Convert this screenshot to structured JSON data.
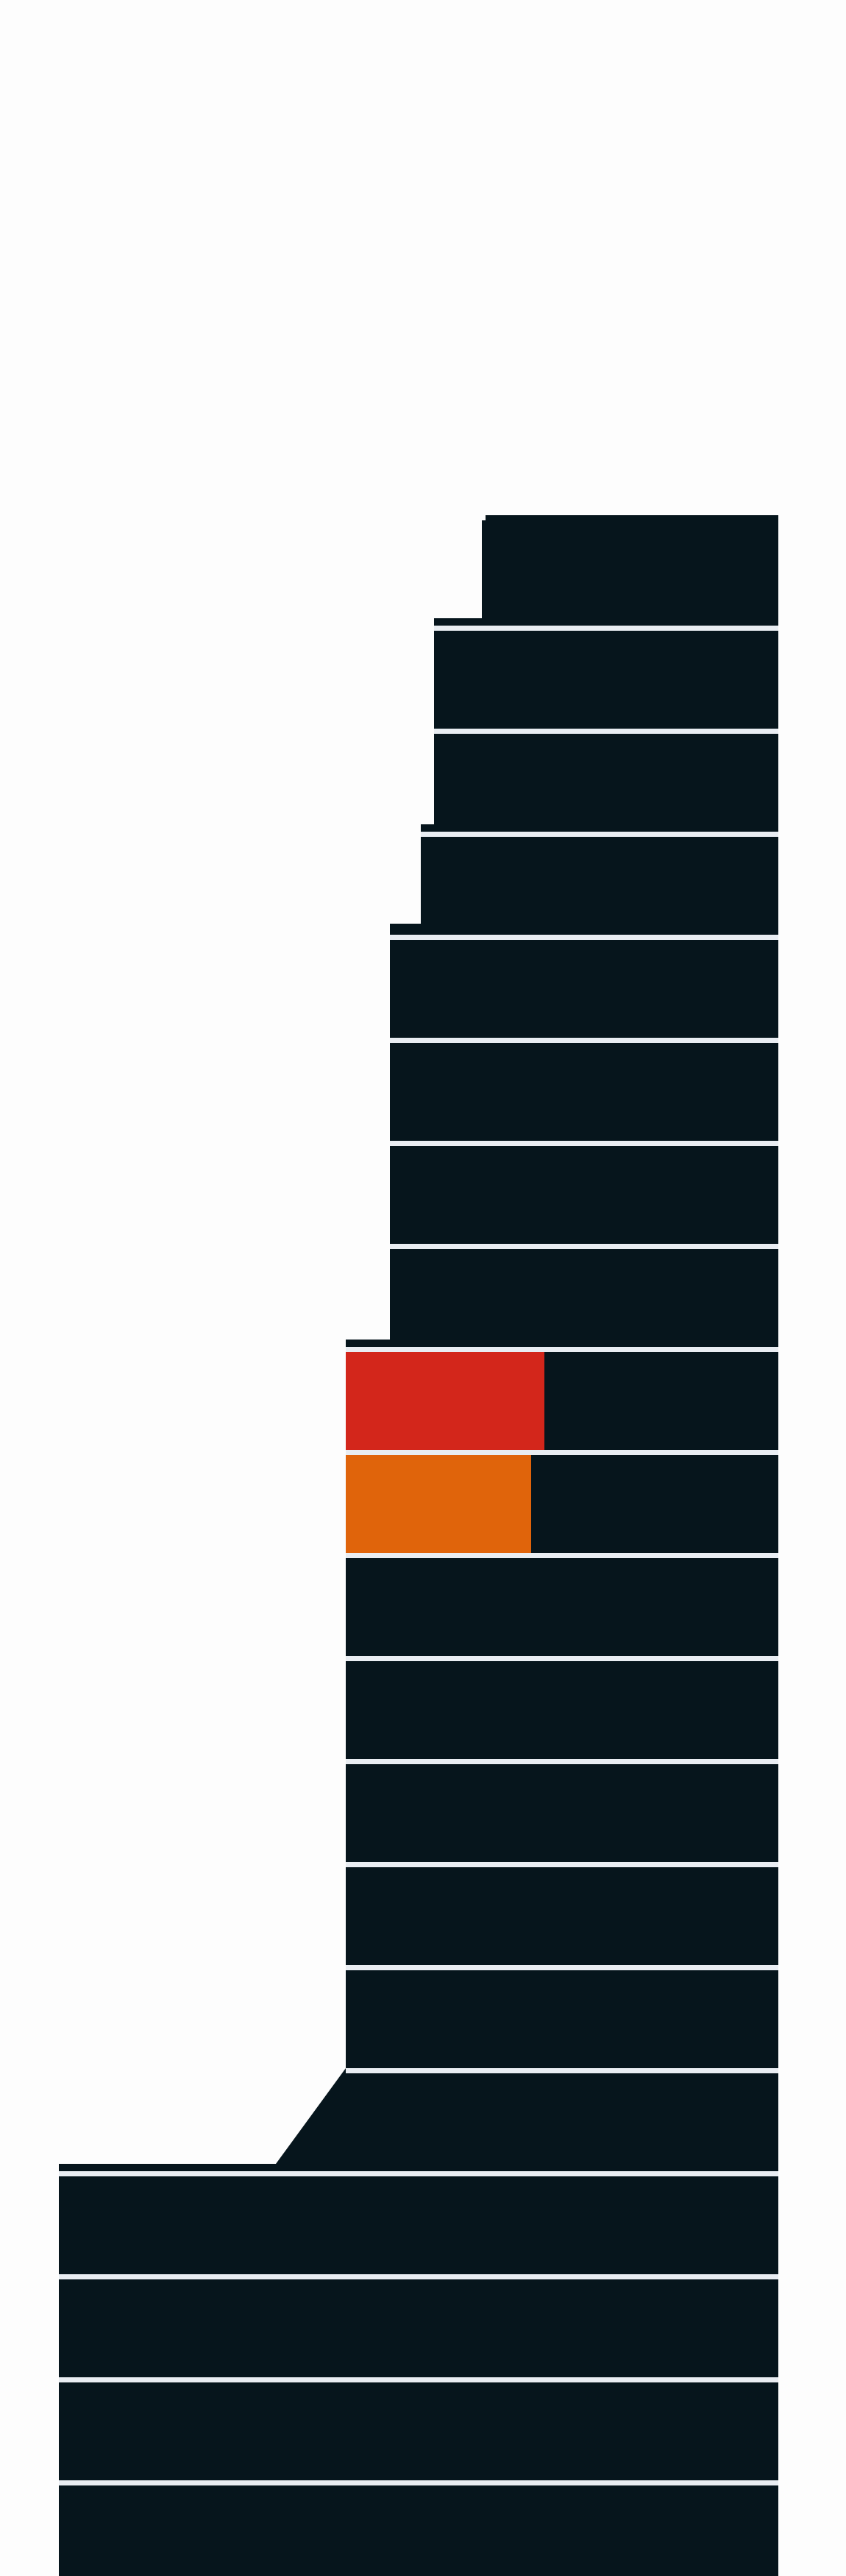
{
  "colors": {
    "background": "#fdfdfd",
    "building": "#06151c",
    "floor_divider": "#e9edf2",
    "highlight_red": "#d3261b",
    "highlight_orange": "#e0640b",
    "highlight_olive": "#a89844"
  },
  "floors": [
    {
      "id": "floor-20"
    },
    {
      "id": "floor-19"
    },
    {
      "id": "floor-18"
    },
    {
      "id": "floor-17"
    },
    {
      "id": "floor-16"
    },
    {
      "id": "floor-15"
    },
    {
      "id": "floor-14"
    },
    {
      "id": "floor-13"
    },
    {
      "id": "floor-12",
      "highlight": "highlight_red"
    },
    {
      "id": "floor-11",
      "highlight": "highlight_orange"
    },
    {
      "id": "floor-10"
    },
    {
      "id": "floor-09"
    },
    {
      "id": "floor-08"
    },
    {
      "id": "floor-07"
    },
    {
      "id": "floor-06"
    },
    {
      "id": "floor-05"
    },
    {
      "id": "floor-04"
    },
    {
      "id": "floor-03"
    },
    {
      "id": "floor-02"
    },
    {
      "id": "floor-01"
    },
    {
      "id": "floor-00",
      "highlight": "highlight_olive"
    }
  ]
}
